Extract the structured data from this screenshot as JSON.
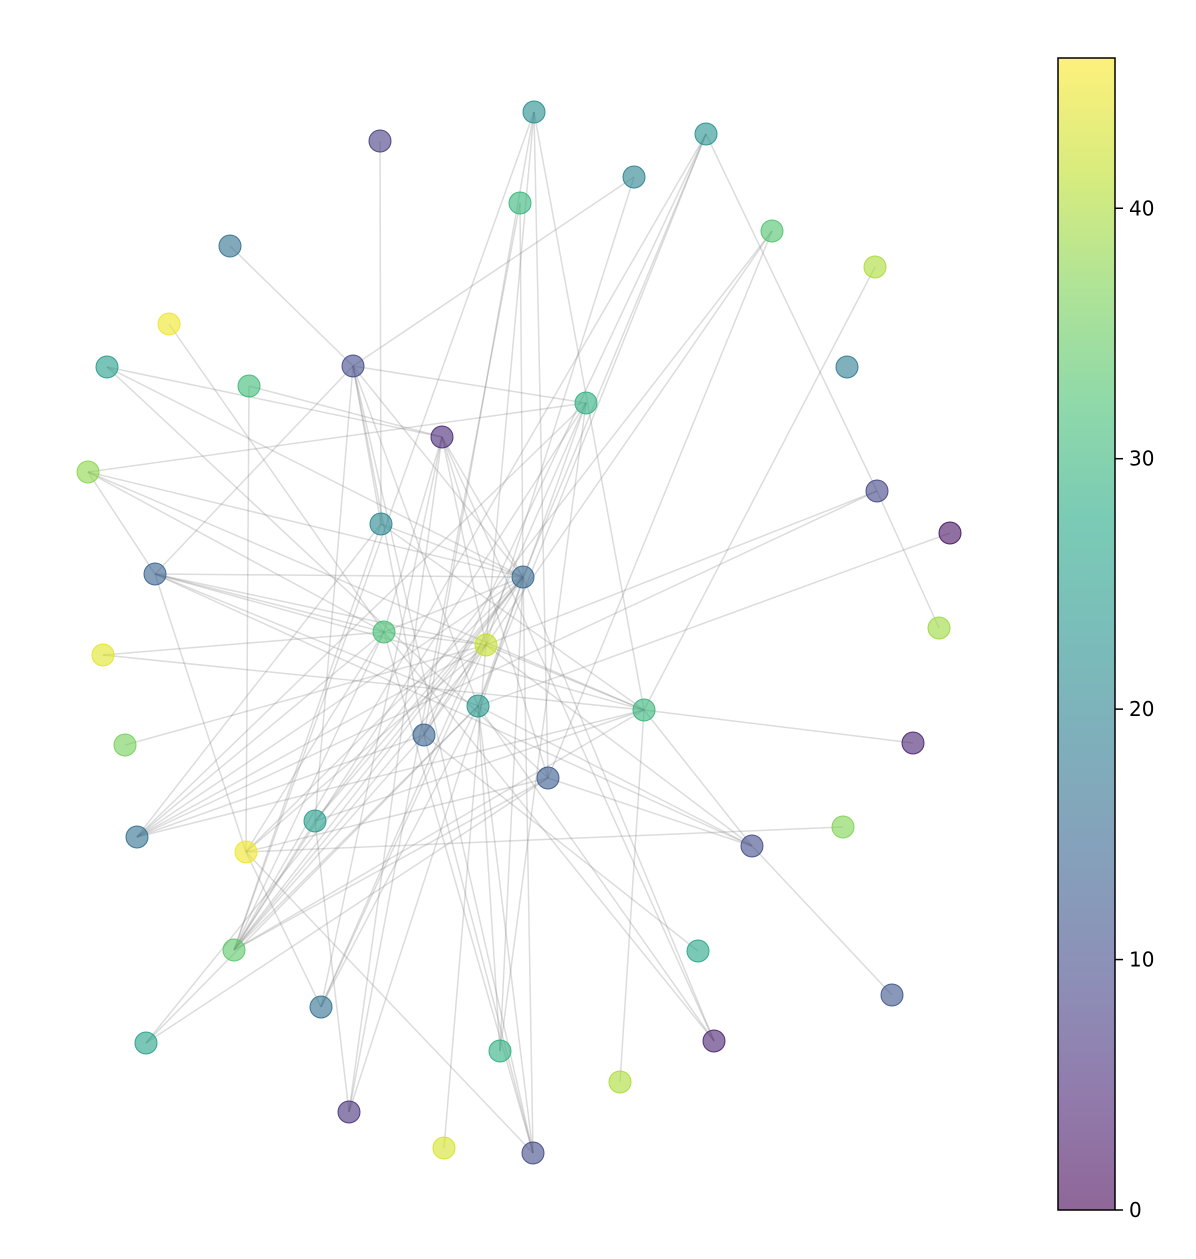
{
  "chart_data": {
    "type": "network",
    "title": "",
    "xlabel": "",
    "ylabel": "",
    "colormap": "viridis",
    "node_alpha": 0.6,
    "edge_color": "#808080",
    "colorbar": {
      "range": [
        0,
        46
      ],
      "ticks": [
        0,
        10,
        20,
        30,
        40
      ],
      "tick_labels": [
        "0",
        "10",
        "20",
        "30",
        "40"
      ]
    },
    "nodes": [
      {
        "id": 0,
        "x": 534,
        "y": -112,
        "value": 22
      },
      {
        "id": 1,
        "x": 380,
        "y": -141,
        "value": 8
      },
      {
        "id": 2,
        "x": 706,
        "y": -134,
        "value": 23
      },
      {
        "id": 3,
        "x": 634,
        "y": -177,
        "value": 20
      },
      {
        "id": 4,
        "x": 520,
        "y": -203,
        "value": 30
      },
      {
        "id": 5,
        "x": 230,
        "y": -246,
        "value": 17
      },
      {
        "id": 6,
        "x": 772,
        "y": -231,
        "value": 33
      },
      {
        "id": 7,
        "x": 875,
        "y": -267,
        "value": 40
      },
      {
        "id": 8,
        "x": 169,
        "y": -324,
        "value": 45
      },
      {
        "id": 9,
        "x": 107,
        "y": -367,
        "value": 25
      },
      {
        "id": 10,
        "x": 249,
        "y": -386,
        "value": 31
      },
      {
        "id": 11,
        "x": 353,
        "y": -366,
        "value": 10
      },
      {
        "id": 12,
        "x": 847,
        "y": -367,
        "value": 19
      },
      {
        "id": 13,
        "x": 586,
        "y": -403,
        "value": 29
      },
      {
        "id": 14,
        "x": 442,
        "y": -437,
        "value": 5
      },
      {
        "id": 15,
        "x": 88,
        "y": -472,
        "value": 38
      },
      {
        "id": 16,
        "x": 877,
        "y": -491,
        "value": 9
      },
      {
        "id": 17,
        "x": 381,
        "y": -524,
        "value": 21
      },
      {
        "id": 18,
        "x": 950,
        "y": -533,
        "value": 2
      },
      {
        "id": 19,
        "x": 155,
        "y": -574,
        "value": 14
      },
      {
        "id": 20,
        "x": 523,
        "y": -577,
        "value": 15
      },
      {
        "id": 21,
        "x": 384,
        "y": -632,
        "value": 32
      },
      {
        "id": 22,
        "x": 486,
        "y": -645,
        "value": 42
      },
      {
        "id": 23,
        "x": 939,
        "y": -628,
        "value": 39
      },
      {
        "id": 24,
        "x": 103,
        "y": -655,
        "value": 44
      },
      {
        "id": 25,
        "x": 644,
        "y": -710,
        "value": 30
      },
      {
        "id": 26,
        "x": 478,
        "y": -706,
        "value": 24
      },
      {
        "id": 27,
        "x": 125,
        "y": -745,
        "value": 36
      },
      {
        "id": 28,
        "x": 424,
        "y": -735,
        "value": 14
      },
      {
        "id": 29,
        "x": 913,
        "y": -743,
        "value": 4
      },
      {
        "id": 30,
        "x": 548,
        "y": -778,
        "value": 13
      },
      {
        "id": 31,
        "x": 315,
        "y": -821,
        "value": 25
      },
      {
        "id": 32,
        "x": 843,
        "y": -827,
        "value": 37
      },
      {
        "id": 33,
        "x": 137,
        "y": -837,
        "value": 17
      },
      {
        "id": 34,
        "x": 752,
        "y": -846,
        "value": 10
      },
      {
        "id": 35,
        "x": 246,
        "y": -852,
        "value": 45
      },
      {
        "id": 36,
        "x": 234,
        "y": -950,
        "value": 34
      },
      {
        "id": 37,
        "x": 698,
        "y": -951,
        "value": 27
      },
      {
        "id": 38,
        "x": 892,
        "y": -995,
        "value": 12
      },
      {
        "id": 39,
        "x": 321,
        "y": -1007,
        "value": 17
      },
      {
        "id": 40,
        "x": 146,
        "y": -1043,
        "value": 26
      },
      {
        "id": 41,
        "x": 714,
        "y": -1041,
        "value": 4
      },
      {
        "id": 42,
        "x": 500,
        "y": -1051,
        "value": 29
      },
      {
        "id": 43,
        "x": 620,
        "y": -1082,
        "value": 40
      },
      {
        "id": 44,
        "x": 349,
        "y": -1112,
        "value": 6
      },
      {
        "id": 45,
        "x": 444,
        "y": -1148,
        "value": 43
      },
      {
        "id": 46,
        "x": 533,
        "y": -1153,
        "value": 10
      }
    ],
    "edges": [
      [
        0,
        28
      ],
      [
        0,
        30
      ],
      [
        0,
        25
      ],
      [
        0,
        22
      ],
      [
        0,
        36
      ],
      [
        1,
        17
      ],
      [
        2,
        20
      ],
      [
        2,
        26
      ],
      [
        2,
        36
      ],
      [
        2,
        16
      ],
      [
        2,
        28
      ],
      [
        3,
        11
      ],
      [
        3,
        22
      ],
      [
        4,
        44
      ],
      [
        4,
        20
      ],
      [
        5,
        11
      ],
      [
        6,
        30
      ],
      [
        6,
        28
      ],
      [
        6,
        31
      ],
      [
        7,
        25
      ],
      [
        8,
        21
      ],
      [
        9,
        20
      ],
      [
        9,
        30
      ],
      [
        9,
        14
      ],
      [
        10,
        35
      ],
      [
        10,
        14
      ],
      [
        11,
        13
      ],
      [
        11,
        17
      ],
      [
        11,
        20
      ],
      [
        11,
        28
      ],
      [
        11,
        31
      ],
      [
        11,
        19
      ],
      [
        11,
        26
      ],
      [
        11,
        46
      ],
      [
        13,
        15
      ],
      [
        13,
        36
      ],
      [
        13,
        26
      ],
      [
        13,
        33
      ],
      [
        13,
        39
      ],
      [
        13,
        42
      ],
      [
        14,
        20
      ],
      [
        14,
        22
      ],
      [
        14,
        30
      ],
      [
        14,
        39
      ],
      [
        14,
        41
      ],
      [
        14,
        21
      ],
      [
        14,
        44
      ],
      [
        15,
        20
      ],
      [
        15,
        21
      ],
      [
        15,
        25
      ],
      [
        15,
        19
      ],
      [
        16,
        22
      ],
      [
        16,
        33
      ],
      [
        17,
        20
      ],
      [
        17,
        25
      ],
      [
        17,
        36
      ],
      [
        17,
        33
      ],
      [
        18,
        26
      ],
      [
        19,
        21
      ],
      [
        19,
        22
      ],
      [
        19,
        20
      ],
      [
        19,
        34
      ],
      [
        19,
        26
      ],
      [
        19,
        25
      ],
      [
        19,
        35
      ],
      [
        20,
        21
      ],
      [
        20,
        33
      ],
      [
        20,
        28
      ],
      [
        20,
        35
      ],
      [
        20,
        36
      ],
      [
        20,
        40
      ],
      [
        20,
        41
      ],
      [
        20,
        44
      ],
      [
        20,
        46
      ],
      [
        20,
        42
      ],
      [
        20,
        31
      ],
      [
        21,
        22
      ],
      [
        21,
        24
      ],
      [
        21,
        33
      ],
      [
        21,
        36
      ],
      [
        21,
        41
      ],
      [
        21,
        46
      ],
      [
        21,
        35
      ],
      [
        22,
        25
      ],
      [
        22,
        27
      ],
      [
        22,
        33
      ],
      [
        22,
        35
      ],
      [
        22,
        36
      ],
      [
        22,
        45
      ],
      [
        22,
        39
      ],
      [
        22,
        34
      ],
      [
        23,
        16
      ],
      [
        24,
        25
      ],
      [
        25,
        29
      ],
      [
        25,
        31
      ],
      [
        25,
        34
      ],
      [
        25,
        43
      ],
      [
        25,
        36
      ],
      [
        25,
        33
      ],
      [
        26,
        34
      ],
      [
        26,
        36
      ],
      [
        26,
        39
      ],
      [
        26,
        46
      ],
      [
        26,
        40
      ],
      [
        26,
        41
      ],
      [
        26,
        42
      ],
      [
        28,
        33
      ],
      [
        28,
        37
      ],
      [
        28,
        46
      ],
      [
        28,
        36
      ],
      [
        30,
        35
      ],
      [
        30,
        36
      ],
      [
        30,
        40
      ],
      [
        30,
        34
      ],
      [
        31,
        36
      ],
      [
        31,
        44
      ],
      [
        32,
        35
      ],
      [
        34,
        38
      ],
      [
        35,
        46
      ],
      [
        35,
        39
      ]
    ]
  }
}
